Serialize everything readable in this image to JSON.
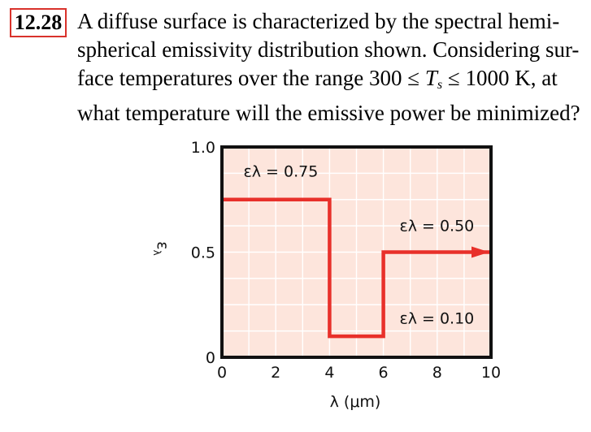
{
  "problem": {
    "number": "12.28",
    "line1": "A diffuse surface is characterized by the spectral hemi-",
    "line2": "spherical emissivity distribution shown. Considering sur-",
    "line3_pre": "face temperatures over the range 300 ≤ ",
    "line3_T1": "T",
    "line3_sub1": "s",
    "line3_post": " ≤ 1000 K, at",
    "line4": "what temperature will the emissive power be minimized?"
  },
  "chart_data": {
    "type": "line",
    "xlabel": "λ (μm)",
    "ylabel": "ε",
    "ylabel_sub": "λ",
    "xlim": [
      0,
      10
    ],
    "ylim": [
      0,
      1.0
    ],
    "xticks": [
      "0",
      "2",
      "4",
      "6",
      "8",
      "10"
    ],
    "yticks": [
      "0",
      "0.5",
      "1.0"
    ],
    "grid": true,
    "series": [
      {
        "x": [
          0,
          4,
          4,
          6,
          6,
          10
        ],
        "y": [
          0.75,
          0.75,
          0.1,
          0.1,
          0.5,
          0.5
        ]
      }
    ],
    "annotations": [
      {
        "text": "ελ = 0.75",
        "x": 0.8,
        "y": 0.86
      },
      {
        "text": "ελ = 0.50",
        "x": 6.6,
        "y": 0.6
      },
      {
        "text": "ελ = 0.10",
        "x": 6.6,
        "y": 0.16
      }
    ],
    "colors": {
      "line": "#e8302a",
      "plot_bg": "#fde5dc",
      "grid": "#ffffff",
      "frame": "#111111"
    }
  }
}
